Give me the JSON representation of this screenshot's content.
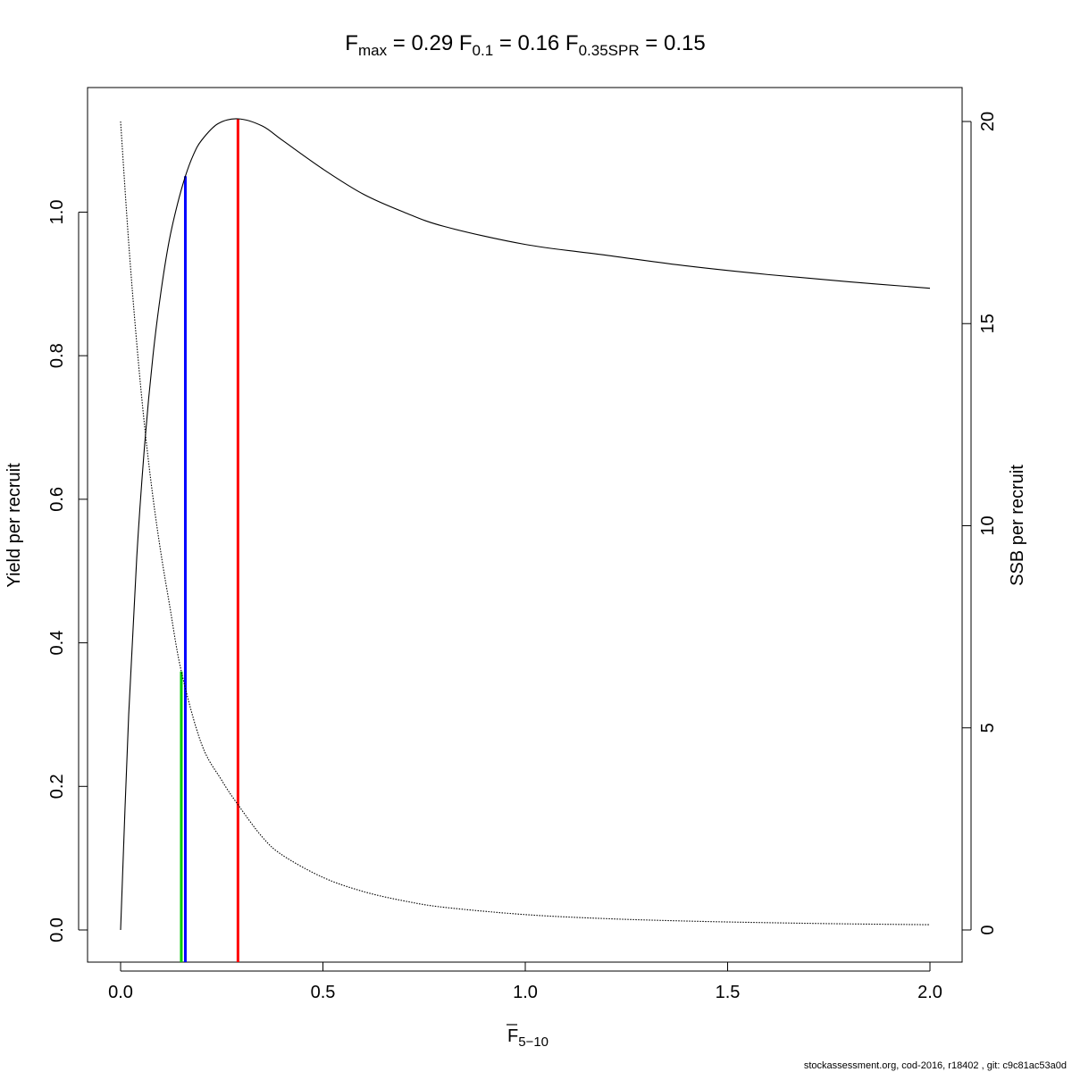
{
  "chart_data": {
    "type": "line",
    "title": {
      "fmax": {
        "base": "F",
        "sub": "max",
        "value": "0.29"
      },
      "f01": {
        "base": "F",
        "sub": "0.1",
        "value": "0.16"
      },
      "fspr": {
        "base": "F",
        "sub": "0.35SPR",
        "value": "0.15"
      }
    },
    "xlabel": {
      "base": "F",
      "sub": "5−10"
    },
    "ylabel_left": "Yield per recruit",
    "ylabel_right": "SSB per recruit",
    "xlim": [
      0,
      2
    ],
    "ylim_left": [
      0,
      1.13
    ],
    "ylim_right": [
      0,
      20
    ],
    "x_ticks": [
      "0.0",
      "0.5",
      "1.0",
      "1.5",
      "2.0"
    ],
    "y_left_ticks": [
      "0.0",
      "0.2",
      "0.4",
      "0.6",
      "0.8",
      "1.0"
    ],
    "y_right_ticks": [
      "0",
      "5",
      "10",
      "15",
      "20"
    ],
    "series": [
      {
        "axis": "left",
        "style": "solid",
        "x": [
          0,
          0.02,
          0.04,
          0.06,
          0.08,
          0.1,
          0.12,
          0.14,
          0.16,
          0.18,
          0.2,
          0.24,
          0.29,
          0.35,
          0.4,
          0.5,
          0.6,
          0.7,
          0.8,
          1.0,
          1.2,
          1.4,
          1.6,
          1.8,
          2.0
        ],
        "y": [
          0,
          0.3,
          0.52,
          0.68,
          0.8,
          0.89,
          0.96,
          1.01,
          1.05,
          1.08,
          1.1,
          1.123,
          1.13,
          1.12,
          1.1,
          1.06,
          1.025,
          1.0,
          0.98,
          0.955,
          0.94,
          0.925,
          0.913,
          0.903,
          0.894
        ]
      },
      {
        "axis": "right",
        "style": "dotted",
        "x": [
          0,
          0.02,
          0.04,
          0.06,
          0.08,
          0.1,
          0.12,
          0.15,
          0.2,
          0.25,
          0.29,
          0.35,
          0.4,
          0.5,
          0.6,
          0.7,
          0.8,
          1.0,
          1.2,
          1.4,
          1.6,
          1.8,
          2.0
        ],
        "y": [
          20,
          17.0,
          14.5,
          12.4,
          10.7,
          9.3,
          8.1,
          6.4,
          4.6,
          3.7,
          3.1,
          2.3,
          1.85,
          1.3,
          0.95,
          0.72,
          0.56,
          0.38,
          0.28,
          0.22,
          0.18,
          0.15,
          0.13
        ]
      }
    ],
    "reference_lines": [
      {
        "x": 0.29,
        "y_top": 1.13,
        "color": "#ff0000"
      },
      {
        "x": 0.16,
        "y_top": 1.05,
        "color": "#0000ff"
      },
      {
        "x": 0.15,
        "y_top": 0.36,
        "color": "#00cc00"
      }
    ]
  },
  "footer": "stockassessment.org, cod-2016, r18402 , git: c9c81ac53a0d"
}
